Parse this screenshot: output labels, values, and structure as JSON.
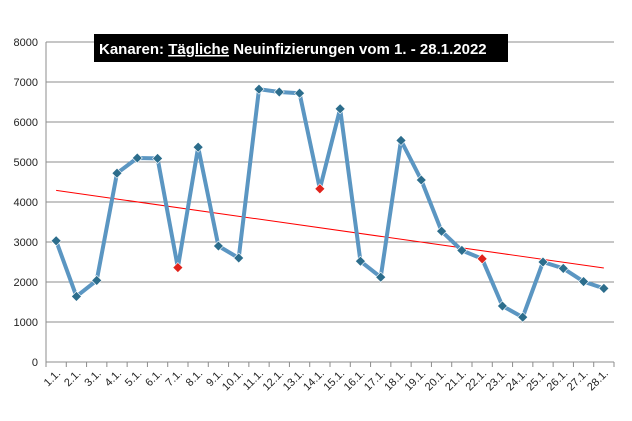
{
  "chart_data": {
    "type": "line",
    "title_parts": [
      {
        "text": "Kanaren: ",
        "underline": false
      },
      {
        "text": "Tägliche",
        "underline": true
      },
      {
        "text": " Neuinfizierungen vom 1. - 28.1.2022",
        "underline": false
      }
    ],
    "xlabel": "",
    "ylabel": "",
    "ylim": [
      0,
      8000
    ],
    "yticks": [
      0,
      1000,
      2000,
      3000,
      4000,
      5000,
      6000,
      7000,
      8000
    ],
    "grid": true,
    "legend": "none",
    "categories": [
      "1.1.",
      "2.1.",
      "3.1.",
      "4.1.",
      "5.1.",
      "6.1.",
      "7.1.",
      "8.1.",
      "9.1.",
      "10.1.",
      "11.1.",
      "12.1.",
      "13.1.",
      "14.1.",
      "15.1.",
      "16.1.",
      "17.1.",
      "18.1.",
      "19.1.",
      "20.1.",
      "21.1.",
      "22.1.",
      "23.1.",
      "24.1.",
      "25.1.",
      "26.1.",
      "27.1.",
      "28.1."
    ],
    "series": [
      {
        "values": [
          3030,
          1640,
          2040,
          4720,
          5100,
          5090,
          2360,
          5370,
          2900,
          2600,
          6820,
          6750,
          6720,
          4330,
          6330,
          2520,
          2120,
          5540,
          4550,
          3270,
          2790,
          2580,
          1400,
          1120,
          2500,
          2340,
          2010,
          1840
        ],
        "highlighted_points": [
          "7.1.",
          "14.1.",
          "22.1."
        ]
      }
    ],
    "trendline": {
      "start": 4290,
      "end": 2350
    },
    "colors": {
      "line": "#5b96c2",
      "marker": "#2c6d8c",
      "highlight_marker": "#e0231c",
      "trendline": "#ff0000",
      "grid": "#8c8c8c",
      "title_background": "#000000",
      "title_text": "#ffffff"
    }
  }
}
